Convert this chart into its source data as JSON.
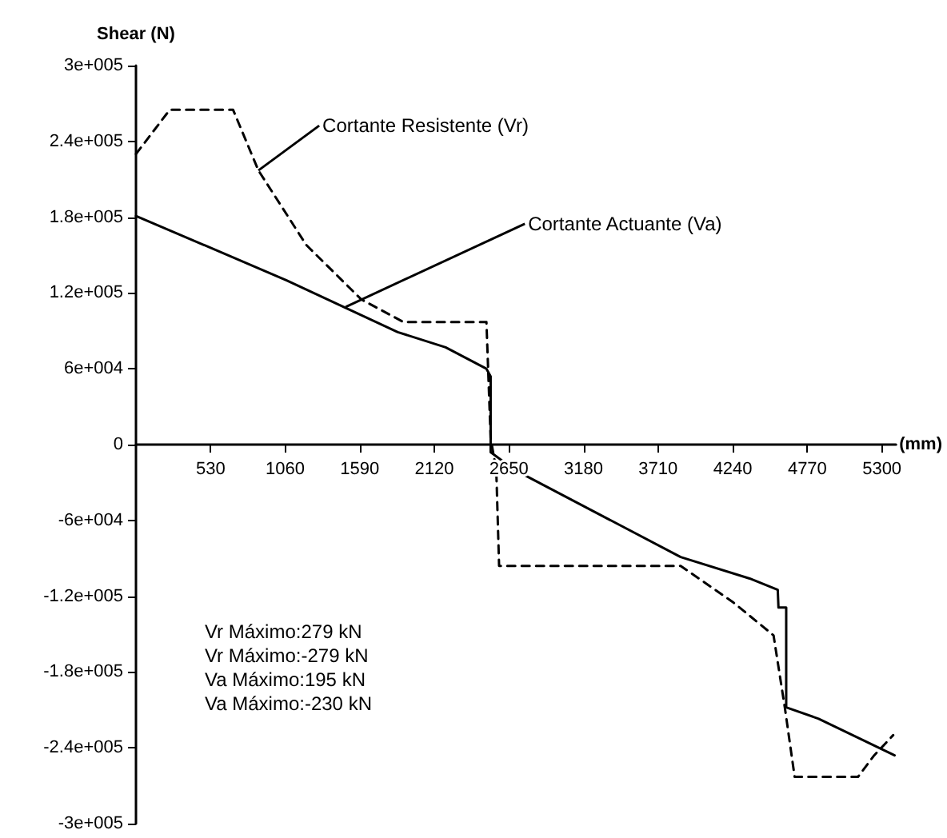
{
  "chart_data": {
    "type": "line",
    "ylabel": "Shear (N)",
    "xlabel": "(mm)",
    "xlim": [
      0,
      5400
    ],
    "xticks": [
      530,
      1060,
      1590,
      2120,
      2650,
      3180,
      3710,
      4240,
      4770,
      5300
    ],
    "ylim": [
      -300000,
      300000
    ],
    "yticks": [
      {
        "value": 300000,
        "label": "3e+005"
      },
      {
        "value": 240000,
        "label": "2.4e+005"
      },
      {
        "value": 180000,
        "label": "1.8e+005"
      },
      {
        "value": 120000,
        "label": "1.2e+005"
      },
      {
        "value": 60000,
        "label": "6e+004"
      },
      0,
      {
        "value": -60000,
        "label": "-6e+004"
      },
      {
        "value": -120000,
        "label": "-1.2e+005"
      },
      {
        "value": -180000,
        "label": "-1.8e+005"
      },
      {
        "value": -240000,
        "label": "-2.4e+005"
      },
      {
        "value": -300000,
        "label": "-3e+005"
      }
    ],
    "series": [
      {
        "color": "#000000",
        "line_style": "dashed",
        "x": [
          0,
          240,
          690,
          870,
          1210,
          1600,
          1900,
          2490,
          2520,
          2560,
          2580,
          3870,
          4245,
          4530,
          4610,
          4680,
          5130,
          5245,
          5380
        ],
        "values": [
          230000,
          265000,
          265000,
          217000,
          158000,
          115000,
          97000,
          97000,
          5000,
          -20000,
          -96000,
          -96000,
          -125000,
          -151000,
          -208000,
          -263000,
          -263000,
          -246000,
          -230000
        ]
      },
      {
        "color": "#000000",
        "line_style": "solid",
        "x": [
          0,
          1070,
          1860,
          2200,
          2490,
          2520,
          2520,
          2690,
          3870,
          4360,
          4560,
          4565,
          4620,
          4620,
          4850,
          5390
        ],
        "values": [
          181000,
          130000,
          89000,
          77000,
          60000,
          54000,
          -6000,
          -20000,
          -89000,
          -106000,
          -115000,
          -129000,
          -129000,
          -208000,
          -217000,
          -246000
        ]
      }
    ],
    "grid": false,
    "marker": "none",
    "annotations": [
      {
        "text": "Cortante Resistente (Vr)",
        "x": 870,
        "y": 217000
      },
      {
        "text": "Cortante Actuante (Va)",
        "x": 1490,
        "y": 109000
      },
      "Vr Máximo:279 kN",
      "Vr Máximo:-279 kN",
      "Va Máximo:195 kN",
      "Va Máximo:-230 kN"
    ]
  }
}
